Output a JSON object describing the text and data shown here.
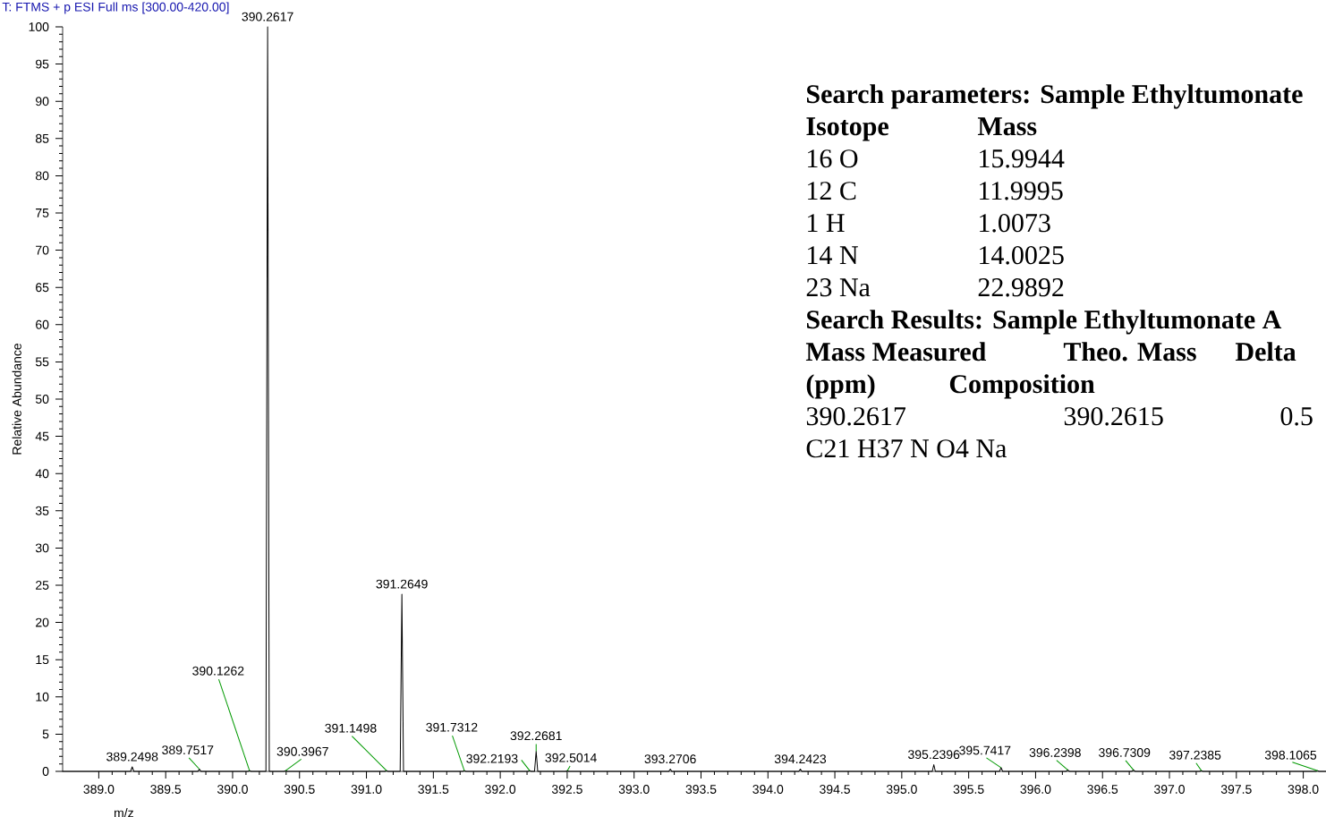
{
  "chart_data": {
    "type": "line",
    "title": "T: FTMS + p ESI Full ms [300.00-420.00]",
    "xlabel": "m/z",
    "ylabel": "Relative Abundance",
    "xlim": [
      388.73,
      398.17
    ],
    "ylim": [
      0,
      100
    ],
    "xticks": [
      {
        "value": 389.0,
        "label": "389.0"
      },
      {
        "value": 389.5,
        "label": "389.5"
      },
      {
        "value": 390.0,
        "label": "390.0"
      },
      {
        "value": 390.5,
        "label": "390.5"
      },
      {
        "value": 391.0,
        "label": "391.0"
      },
      {
        "value": 391.5,
        "label": "391.5"
      },
      {
        "value": 392.0,
        "label": "392.0"
      },
      {
        "value": 392.5,
        "label": "392.5"
      },
      {
        "value": 393.0,
        "label": "393.0"
      },
      {
        "value": 393.5,
        "label": "393.5"
      },
      {
        "value": 394.0,
        "label": "394.0"
      },
      {
        "value": 394.5,
        "label": "394.5"
      },
      {
        "value": 395.0,
        "label": "395.0"
      },
      {
        "value": 395.5,
        "label": "395.5"
      },
      {
        "value": 396.0,
        "label": "396.0"
      },
      {
        "value": 396.5,
        "label": "396.5"
      },
      {
        "value": 397.0,
        "label": "397.0"
      },
      {
        "value": 397.5,
        "label": "397.5"
      },
      {
        "value": 398.0,
        "label": "398.0"
      }
    ],
    "yticks": [
      0,
      5,
      10,
      15,
      20,
      25,
      30,
      35,
      40,
      45,
      50,
      55,
      60,
      65,
      70,
      75,
      80,
      85,
      90,
      95,
      100
    ],
    "x": [
      388.73,
      389.238,
      389.2498,
      389.262,
      389.74,
      389.7517,
      389.764,
      390.114,
      390.1262,
      390.138,
      390.249,
      390.2617,
      390.274,
      390.385,
      390.3967,
      390.409,
      391.138,
      391.1498,
      391.162,
      391.252,
      391.2649,
      391.277,
      391.719,
      391.7312,
      391.743,
      392.207,
      392.2193,
      392.231,
      392.256,
      392.2681,
      392.28,
      392.49,
      392.5014,
      392.513,
      393.259,
      393.2706,
      393.282,
      394.23,
      394.2423,
      394.254,
      395.228,
      395.2396,
      395.251,
      395.73,
      395.7417,
      395.754,
      396.228,
      396.2398,
      396.252,
      396.719,
      396.7309,
      396.743,
      397.227,
      397.2385,
      397.25,
      398.095,
      398.1065,
      398.118,
      398.17
    ],
    "series": [
      {
        "color": "#000000",
        "values": [
          0,
          0,
          0.6,
          0,
          0,
          0.3,
          0,
          0,
          0.1,
          0,
          0,
          100,
          0,
          0,
          0.1,
          0,
          0,
          0.1,
          0,
          0,
          23.8,
          0,
          0,
          0.1,
          0,
          0,
          0.1,
          0,
          0,
          2.7,
          0,
          0,
          0.1,
          0,
          0,
          0.3,
          0,
          0,
          0.3,
          0,
          0,
          0.9,
          0,
          0,
          0.5,
          0,
          0,
          0.2,
          0,
          0,
          0.2,
          0,
          0,
          0.1,
          0,
          0,
          0.1,
          0,
          0
        ]
      }
    ],
    "annotations": [
      {
        "text": "389.2498",
        "x": 389.2498,
        "y": 0.6
      },
      {
        "text": "389.7517",
        "x": 389.7517,
        "y": 0.3
      },
      {
        "text": "390.1262",
        "x": 390.1262,
        "y": 0.1
      },
      {
        "text": "390.2617",
        "x": 390.2617,
        "y": 100
      },
      {
        "text": "390.3967",
        "x": 390.3967,
        "y": 0.1
      },
      {
        "text": "391.1498",
        "x": 391.1498,
        "y": 0.1
      },
      {
        "text": "391.2649",
        "x": 391.2649,
        "y": 23.8
      },
      {
        "text": "391.7312",
        "x": 391.7312,
        "y": 0.1
      },
      {
        "text": "392.2193",
        "x": 392.2193,
        "y": 0.1
      },
      {
        "text": "392.2681",
        "x": 392.2681,
        "y": 2.7
      },
      {
        "text": "392.5014",
        "x": 392.5014,
        "y": 0.1
      },
      {
        "text": "393.2706",
        "x": 393.2706,
        "y": 0.3
      },
      {
        "text": "394.2423",
        "x": 394.2423,
        "y": 0.3
      },
      {
        "text": "395.2396",
        "x": 395.2396,
        "y": 0.9
      },
      {
        "text": "395.7417",
        "x": 395.7417,
        "y": 0.5
      },
      {
        "text": "396.2398",
        "x": 396.2398,
        "y": 0.2
      },
      {
        "text": "396.7309",
        "x": 396.7309,
        "y": 0.2
      },
      {
        "text": "397.2385",
        "x": 397.2385,
        "y": 0.1
      },
      {
        "text": "398.1065",
        "x": 398.1065,
        "y": 0.1
      },
      "Search parameters: Sample Ethyltumonate",
      "Isotope",
      "Mass",
      "16 O",
      "15.9944",
      "12 C",
      "11.9995",
      "1 H",
      "1.0073",
      "14 N",
      "14.0025",
      "23 Na",
      "22.9892",
      "Search Results: Sample Ethyltumonate A",
      "Mass Measured",
      "Theo. Mass",
      "Delta",
      "(ppm)",
      "Composition",
      "390.2617",
      "390.2615",
      "0.5",
      "C21 H37 N O4 Na"
    ]
  }
}
